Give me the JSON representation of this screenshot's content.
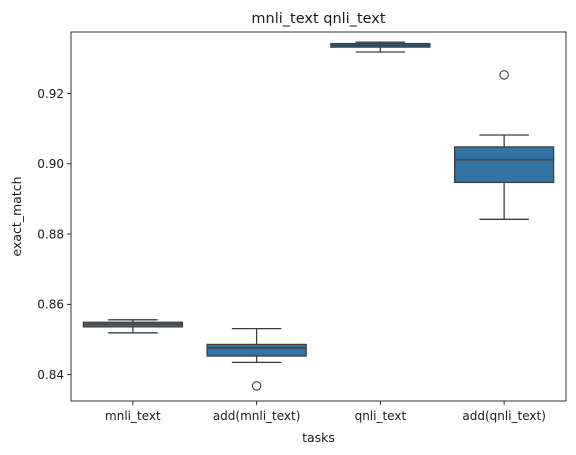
{
  "chart_data": {
    "type": "box",
    "title": "mnli_text qnli_text",
    "xlabel": "tasks",
    "ylabel": "exact_match",
    "ylim": [
      0.8325,
      0.9375
    ],
    "yticks": [
      0.84,
      0.86,
      0.88,
      0.9,
      0.92
    ],
    "ytick_labels": [
      "0.84",
      "0.86",
      "0.88",
      "0.90",
      "0.92"
    ],
    "categories": [
      "mnli_text",
      "add(mnli_text)",
      "qnli_text",
      "add(qnli_text)"
    ],
    "boxes": [
      {
        "whisker_low": 0.8519,
        "q1": 0.8536,
        "median": 0.8543,
        "q3": 0.8549,
        "whisker_high": 0.8556,
        "outliers": []
      },
      {
        "whisker_low": 0.8435,
        "q1": 0.8453,
        "median": 0.8476,
        "q3": 0.8486,
        "whisker_high": 0.8531,
        "outliers": [
          0.8368
        ]
      },
      {
        "whisker_low": 0.9318,
        "q1": 0.9332,
        "median": 0.9337,
        "q3": 0.9342,
        "whisker_high": 0.9346,
        "outliers": []
      },
      {
        "whisker_low": 0.8842,
        "q1": 0.8947,
        "median": 0.9011,
        "q3": 0.9048,
        "whisker_high": 0.9082,
        "outliers": [
          0.9253
        ]
      }
    ],
    "box_color": "#3274a1",
    "line_color": "#3d3d3d",
    "grid": false,
    "legend": "none"
  }
}
